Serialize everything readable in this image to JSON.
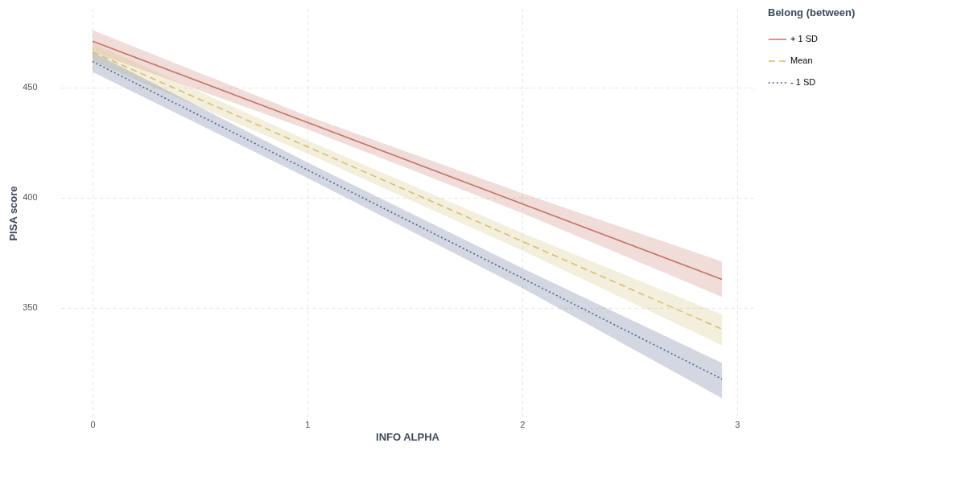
{
  "chart_data": {
    "type": "line",
    "xlabel": "INFO ALPHA",
    "ylabel": "PISA score",
    "legend_title": "Belong (between)",
    "x": [
      0,
      1,
      2,
      2.93
    ],
    "xlim": [
      -0.146,
      3.076
    ],
    "xticks": [
      0,
      1,
      2,
      3
    ],
    "ylim": [
      300,
      486
    ],
    "yticks": [
      350,
      400,
      450
    ],
    "grid": true,
    "legend": "right",
    "marker": "none",
    "series": [
      {
        "name": "+ 1 SD",
        "color": "#c47463",
        "line_style": "solid",
        "values": [
          471,
          434.1,
          397.2,
          362.9
        ],
        "lower": [
          466,
          431,
          393,
          355
        ],
        "upper": [
          476,
          437,
          402,
          371
        ]
      },
      {
        "name": "Mean",
        "color": "#d4bf72",
        "line_style": "dashed",
        "values": [
          466,
          423.1,
          380.2,
          340.3
        ],
        "lower": [
          462,
          420,
          376,
          333
        ],
        "upper": [
          470,
          426,
          384,
          347
        ]
      },
      {
        "name": "- 1 SD",
        "color": "#4b6189",
        "line_style": "dotted",
        "values": [
          461.7,
          412.6,
          363.5,
          317.7
        ],
        "lower": [
          457,
          409,
          359,
          309
        ],
        "upper": [
          466,
          416,
          368,
          325
        ]
      }
    ]
  }
}
